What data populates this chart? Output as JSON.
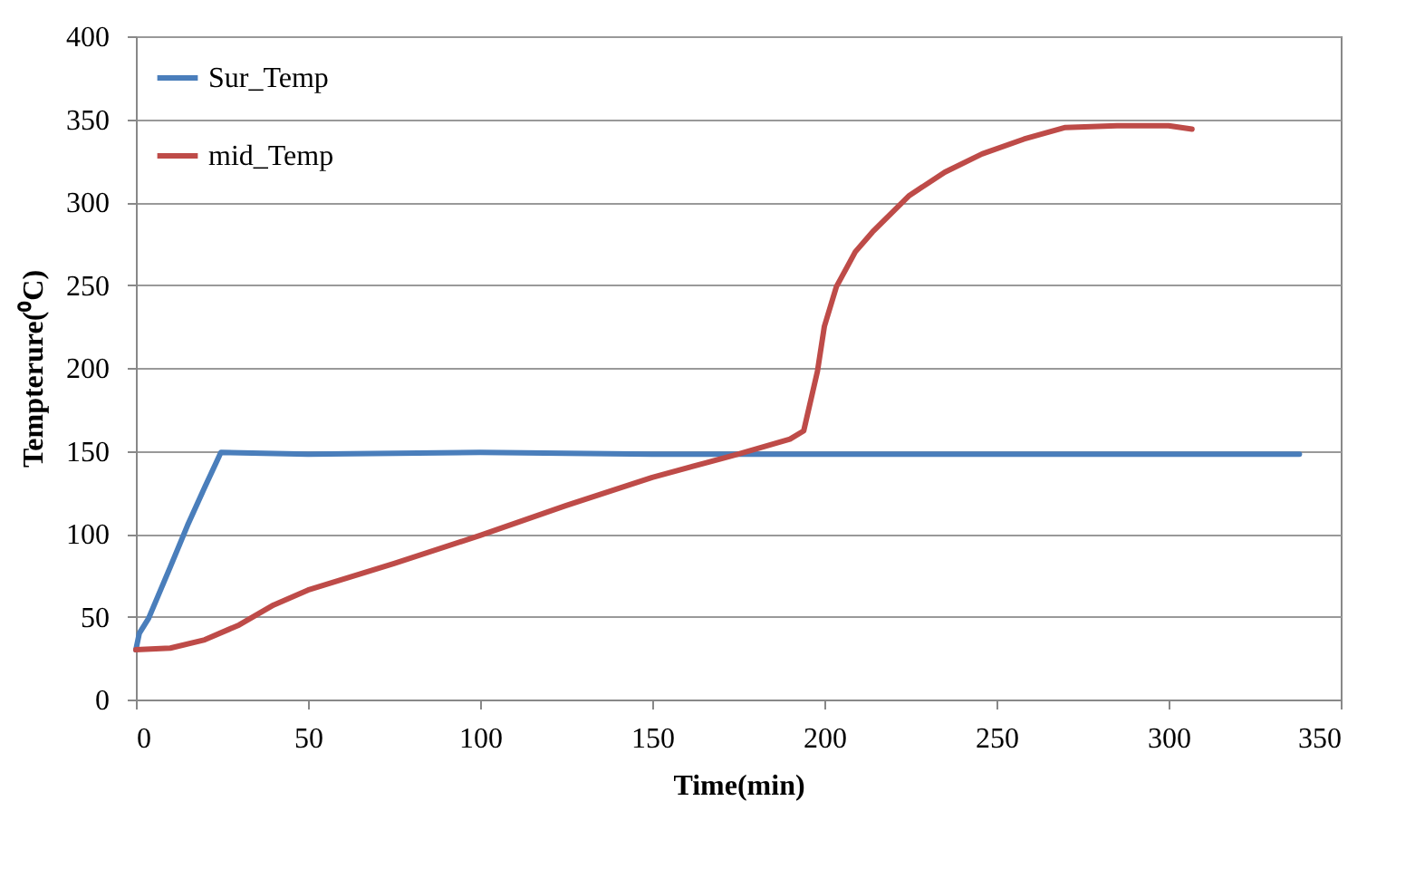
{
  "chart_data": {
    "type": "line",
    "xlabel": "Time(min)",
    "ylabel": "Tempterure(⁰C)",
    "xlim": [
      0,
      350
    ],
    "xticks": [
      0,
      50,
      100,
      150,
      200,
      250,
      300,
      350
    ],
    "ylim": [
      0,
      400
    ],
    "yticks": [
      0,
      50,
      100,
      150,
      200,
      250,
      300,
      350,
      400
    ],
    "grid": "y",
    "legend": "top left",
    "marker": "none",
    "line_style": "solid",
    "series": [
      {
        "name": "Sur_Temp",
        "color": "#4a7ebb",
        "x": [
          0,
          1,
          3.7,
          10,
          15,
          20,
          24.7,
          50,
          100,
          150,
          200,
          250,
          300,
          338
        ],
        "values": [
          30,
          40,
          49,
          80,
          105,
          128,
          149,
          148,
          149,
          148,
          148,
          148,
          148,
          148
        ]
      },
      {
        "name": "mid_Temp",
        "color": "#be4b48",
        "x": [
          0,
          10,
          20,
          30,
          40,
          50,
          75,
          100,
          125,
          150,
          175,
          190,
          194,
          198,
          200,
          203.5,
          209,
          214,
          224.7,
          235,
          245.8,
          258,
          270,
          285,
          300,
          306.8
        ],
        "values": [
          30,
          31,
          36,
          45,
          57,
          66,
          82,
          99,
          117,
          134,
          148,
          157,
          162,
          198,
          225,
          249,
          270,
          282,
          304,
          318,
          329,
          338,
          345,
          346,
          346,
          344
        ]
      }
    ]
  }
}
